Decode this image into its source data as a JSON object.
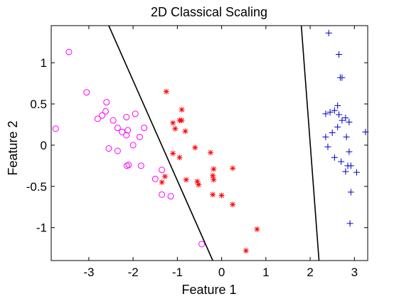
{
  "chart_data": {
    "type": "scatter",
    "title": "2D Classical Scaling",
    "xlabel": "Feature 1",
    "ylabel": "Feature 2",
    "xlim": [
      -3.85,
      3.3
    ],
    "ylim": [
      -1.4,
      1.45
    ],
    "xticks": [
      -3,
      -2,
      -1,
      0,
      1,
      2,
      3
    ],
    "yticks": [
      -1,
      -0.5,
      0,
      0.5,
      1
    ],
    "xtick_labels": [
      "-3",
      "-2",
      "-1",
      "0",
      "1",
      "2",
      "3"
    ],
    "ytick_labels": [
      "-1",
      "-0.5",
      "0",
      "0.5",
      "1"
    ],
    "grid": false,
    "legend": "none",
    "series": [
      {
        "marker": "circle",
        "color": "#ff00ff",
        "points": [
          [
            -3.45,
            1.13
          ],
          [
            -3.05,
            0.64
          ],
          [
            -2.6,
            0.52
          ],
          [
            -2.8,
            0.32
          ],
          [
            -2.7,
            0.36
          ],
          [
            -2.62,
            0.41
          ],
          [
            -3.75,
            0.2
          ],
          [
            -2.45,
            0.3
          ],
          [
            -2.35,
            0.21
          ],
          [
            -2.15,
            0.34
          ],
          [
            -1.95,
            0.38
          ],
          [
            -2.25,
            0.16
          ],
          [
            -2.12,
            0.18
          ],
          [
            -2.15,
            0.12
          ],
          [
            -1.85,
            0.1
          ],
          [
            -1.75,
            0.21
          ],
          [
            -2.0,
            -0.0
          ],
          [
            -2.55,
            -0.04
          ],
          [
            -2.35,
            -0.07
          ],
          [
            -1.82,
            -0.25
          ],
          [
            -2.1,
            -0.24
          ],
          [
            -2.14,
            -0.25
          ],
          [
            -1.35,
            -0.3
          ],
          [
            -1.5,
            -0.41
          ],
          [
            -1.35,
            -0.6
          ],
          [
            -1.15,
            -0.62
          ],
          [
            -0.45,
            -1.2
          ]
        ]
      },
      {
        "marker": "asterisk",
        "color": "#ff0000",
        "points": [
          [
            -1.25,
            0.65
          ],
          [
            -0.9,
            0.43
          ],
          [
            -1.1,
            0.27
          ],
          [
            -0.95,
            0.3
          ],
          [
            -0.9,
            0.3
          ],
          [
            -1.05,
            0.2
          ],
          [
            -0.82,
            0.17
          ],
          [
            -0.6,
            -0.03
          ],
          [
            -0.25,
            -0.09
          ],
          [
            -1.1,
            -0.1
          ],
          [
            -0.95,
            -0.15
          ],
          [
            -1.28,
            -0.38
          ],
          [
            -1.35,
            -0.45
          ],
          [
            -0.8,
            -0.42
          ],
          [
            -0.55,
            -0.44
          ],
          [
            -0.52,
            -0.48
          ],
          [
            -0.2,
            -0.37
          ],
          [
            -0.18,
            -0.29
          ],
          [
            -0.18,
            -0.42
          ],
          [
            0.25,
            -0.28
          ],
          [
            0.0,
            -0.61
          ],
          [
            -0.2,
            -0.6
          ],
          [
            0.25,
            -0.72
          ],
          [
            0.8,
            -1.02
          ],
          [
            0.55,
            -1.28
          ]
        ]
      },
      {
        "marker": "plus",
        "color": "#0000cc",
        "points": [
          [
            2.42,
            1.36
          ],
          [
            2.65,
            1.1
          ],
          [
            2.68,
            0.82
          ],
          [
            2.72,
            0.82
          ],
          [
            2.35,
            0.38
          ],
          [
            2.45,
            0.4
          ],
          [
            2.55,
            0.42
          ],
          [
            2.62,
            0.48
          ],
          [
            2.65,
            0.37
          ],
          [
            2.72,
            0.3
          ],
          [
            2.8,
            0.33
          ],
          [
            2.88,
            0.28
          ],
          [
            2.35,
            0.1
          ],
          [
            2.5,
            0.15
          ],
          [
            2.62,
            0.22
          ],
          [
            2.82,
            0.1
          ],
          [
            3.25,
            0.16
          ],
          [
            2.4,
            -0.02
          ],
          [
            2.55,
            -0.15
          ],
          [
            2.7,
            -0.2
          ],
          [
            2.88,
            -0.08
          ],
          [
            2.85,
            -0.25
          ],
          [
            2.8,
            -0.32
          ],
          [
            2.92,
            -0.25
          ],
          [
            3.05,
            -0.33
          ],
          [
            2.92,
            -0.57
          ],
          [
            2.9,
            -0.95
          ]
        ]
      }
    ],
    "boundaries": [
      {
        "from": [
          -2.55,
          1.45
        ],
        "to": [
          -0.2,
          -1.4
        ]
      },
      {
        "from": [
          1.8,
          1.45
        ],
        "to": [
          2.2,
          -1.4
        ]
      }
    ]
  }
}
